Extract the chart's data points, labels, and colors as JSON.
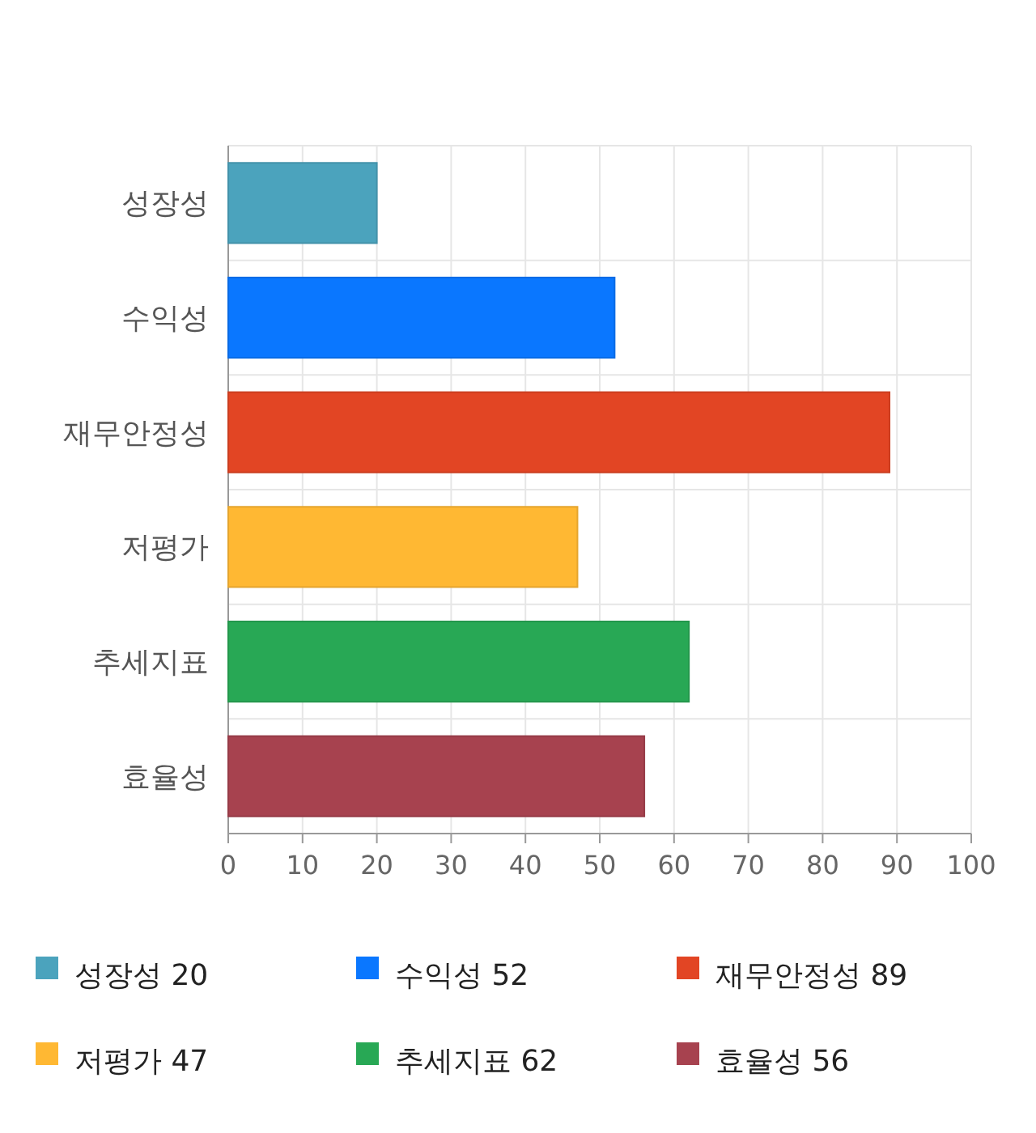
{
  "chart_data": {
    "type": "bar",
    "orientation": "horizontal",
    "categories": [
      "성장성",
      "수익성",
      "재무안정성",
      "저평가",
      "추세지표",
      "효율성"
    ],
    "series": [
      {
        "name": "성장성 20",
        "color": "#4ba3bd",
        "values": [
          20,
          null,
          null,
          null,
          null,
          null
        ]
      },
      {
        "name": "수익성 52",
        "color": "#0a77ff",
        "values": [
          null,
          52,
          null,
          null,
          null,
          null
        ]
      },
      {
        "name": "재무안정성 89",
        "color": "#e24524",
        "values": [
          null,
          null,
          89,
          null,
          null,
          null
        ]
      },
      {
        "name": "저평가 47",
        "color": "#ffb833",
        "values": [
          null,
          null,
          null,
          47,
          null,
          null
        ]
      },
      {
        "name": "추세지표 62",
        "color": "#28a855",
        "values": [
          null,
          null,
          null,
          null,
          62,
          null
        ]
      },
      {
        "name": "효율성 56",
        "color": "#a7424f",
        "values": [
          null,
          null,
          null,
          null,
          null,
          56
        ]
      }
    ],
    "xlim": [
      0,
      100
    ],
    "xticks": [
      0,
      10,
      20,
      30,
      40,
      50,
      60,
      70,
      80,
      90,
      100
    ],
    "grid": true,
    "legend": "bottom"
  }
}
